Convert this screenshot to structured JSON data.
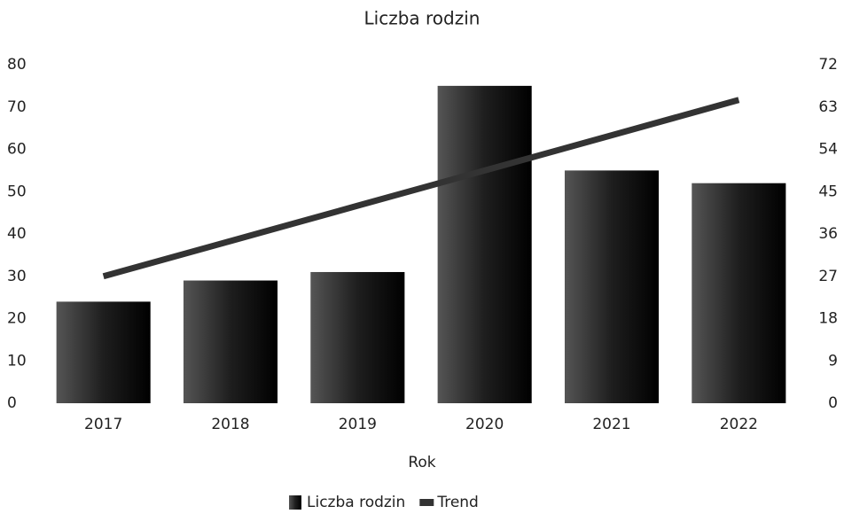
{
  "chart_data": {
    "type": "bar",
    "title": "Liczba rodzin",
    "x_label": "Rok",
    "categories": [
      "2017",
      "2018",
      "2019",
      "2020",
      "2021",
      "2022"
    ],
    "series": [
      {
        "name": "Liczba rodzin",
        "type": "bar",
        "color": "#1e1e1e",
        "values": [
          24,
          29,
          31,
          75,
          55,
          52
        ]
      },
      {
        "name": "Trend",
        "type": "line",
        "axis": "y2",
        "color": "#333333",
        "values": [
          27,
          34.5,
          42,
          49.5,
          57,
          64.5
        ]
      }
    ],
    "ylim": [
      0,
      80
    ],
    "yticks": [
      0,
      10,
      20,
      30,
      40,
      50,
      60,
      70,
      80
    ],
    "y2lim": [
      0,
      72
    ],
    "y2ticks": [
      0,
      9,
      18,
      27,
      36,
      45,
      54,
      63,
      72
    ],
    "grid": false,
    "legend": "bottom"
  }
}
